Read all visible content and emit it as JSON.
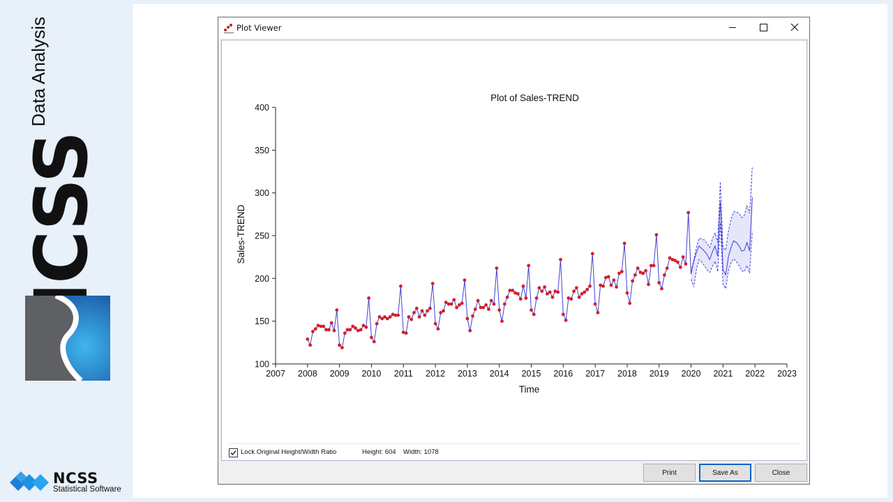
{
  "branding": {
    "big_text": "NCSS",
    "small_text": "Data Analysis",
    "footer_name": "NCSS",
    "footer_tagline": "Statistical Software"
  },
  "window": {
    "title": "Plot Viewer",
    "icon": "scatter-plot-icon",
    "controls": [
      "minimize-icon",
      "maximize-icon",
      "close-icon"
    ]
  },
  "options": {
    "lock_label": "Lock Original Height/Width Ratio",
    "lock_checked": true,
    "height_text": "Height: 604",
    "width_text": "Width: 1078"
  },
  "buttons": {
    "print": "Print",
    "save_as": "Save As",
    "close": "Close"
  },
  "colors": {
    "series_line": "#4040d8",
    "points": "#d0202a",
    "forecast_band": "#e6e6fb",
    "accent": "#0a64c6"
  },
  "chart_data": {
    "type": "line",
    "title": "Plot of Sales-TREND",
    "xlabel": "Time",
    "ylabel": "Sales-TREND",
    "xlim": [
      2007,
      2023
    ],
    "ylim": [
      100,
      400
    ],
    "x_ticks": [
      2007,
      2008,
      2009,
      2010,
      2011,
      2012,
      2013,
      2014,
      2015,
      2016,
      2017,
      2018,
      2019,
      2020,
      2021,
      2022,
      2023
    ],
    "y_ticks": [
      100,
      150,
      200,
      250,
      300,
      350,
      400
    ],
    "grid": false,
    "start": 2008.0,
    "step": 0.08333,
    "series": [
      {
        "values": [
          129,
          122,
          138,
          141,
          145,
          144,
          144,
          140,
          140,
          148,
          139,
          163,
          122,
          119,
          136,
          140,
          140,
          144,
          142,
          139,
          140,
          145,
          143,
          177,
          131,
          126,
          147,
          155,
          153,
          155,
          153,
          155,
          158,
          157,
          157,
          191,
          137,
          136,
          155,
          152,
          160,
          165,
          155,
          162,
          157,
          162,
          165,
          194,
          147,
          141,
          160,
          162,
          172,
          170,
          170,
          175,
          166,
          169,
          171,
          198,
          153,
          139,
          156,
          164,
          174,
          166,
          166,
          169,
          164,
          174,
          170,
          212,
          163,
          150,
          170,
          178,
          186,
          186,
          183,
          182,
          176,
          191,
          177,
          215,
          163,
          158,
          177,
          189,
          185,
          190,
          182,
          184,
          178,
          185,
          184,
          222,
          158,
          151,
          177,
          176,
          185,
          189,
          178,
          182,
          184,
          187,
          191,
          229,
          170,
          160,
          192,
          191,
          201,
          202,
          192,
          198,
          190,
          206,
          208,
          241,
          183,
          171,
          197,
          204,
          212,
          207,
          206,
          209,
          193,
          215,
          215,
          251,
          195,
          188,
          204,
          212,
          224,
          222,
          221,
          219,
          213,
          225,
          217,
          277
        ]
      },
      {
        "values": [
          205,
          220,
          230,
          238,
          235,
          232,
          228,
          222,
          231,
          238,
          226,
          290,
          210,
          204,
          225,
          236,
          244,
          242,
          238,
          232,
          233,
          242,
          232,
          295
        ]
      }
    ],
    "forecast_upper": [
      208,
      222,
      236,
      247,
      246,
      245,
      241,
      236,
      246,
      253,
      242,
      313,
      236,
      233,
      255,
      269,
      278,
      278,
      276,
      271,
      274,
      285,
      276,
      331
    ],
    "forecast_lower": [
      199,
      190,
      210,
      222,
      219,
      215,
      210,
      207,
      214,
      220,
      208,
      265,
      193,
      188,
      209,
      218,
      223,
      220,
      215,
      209,
      208,
      215,
      206,
      255
    ]
  }
}
